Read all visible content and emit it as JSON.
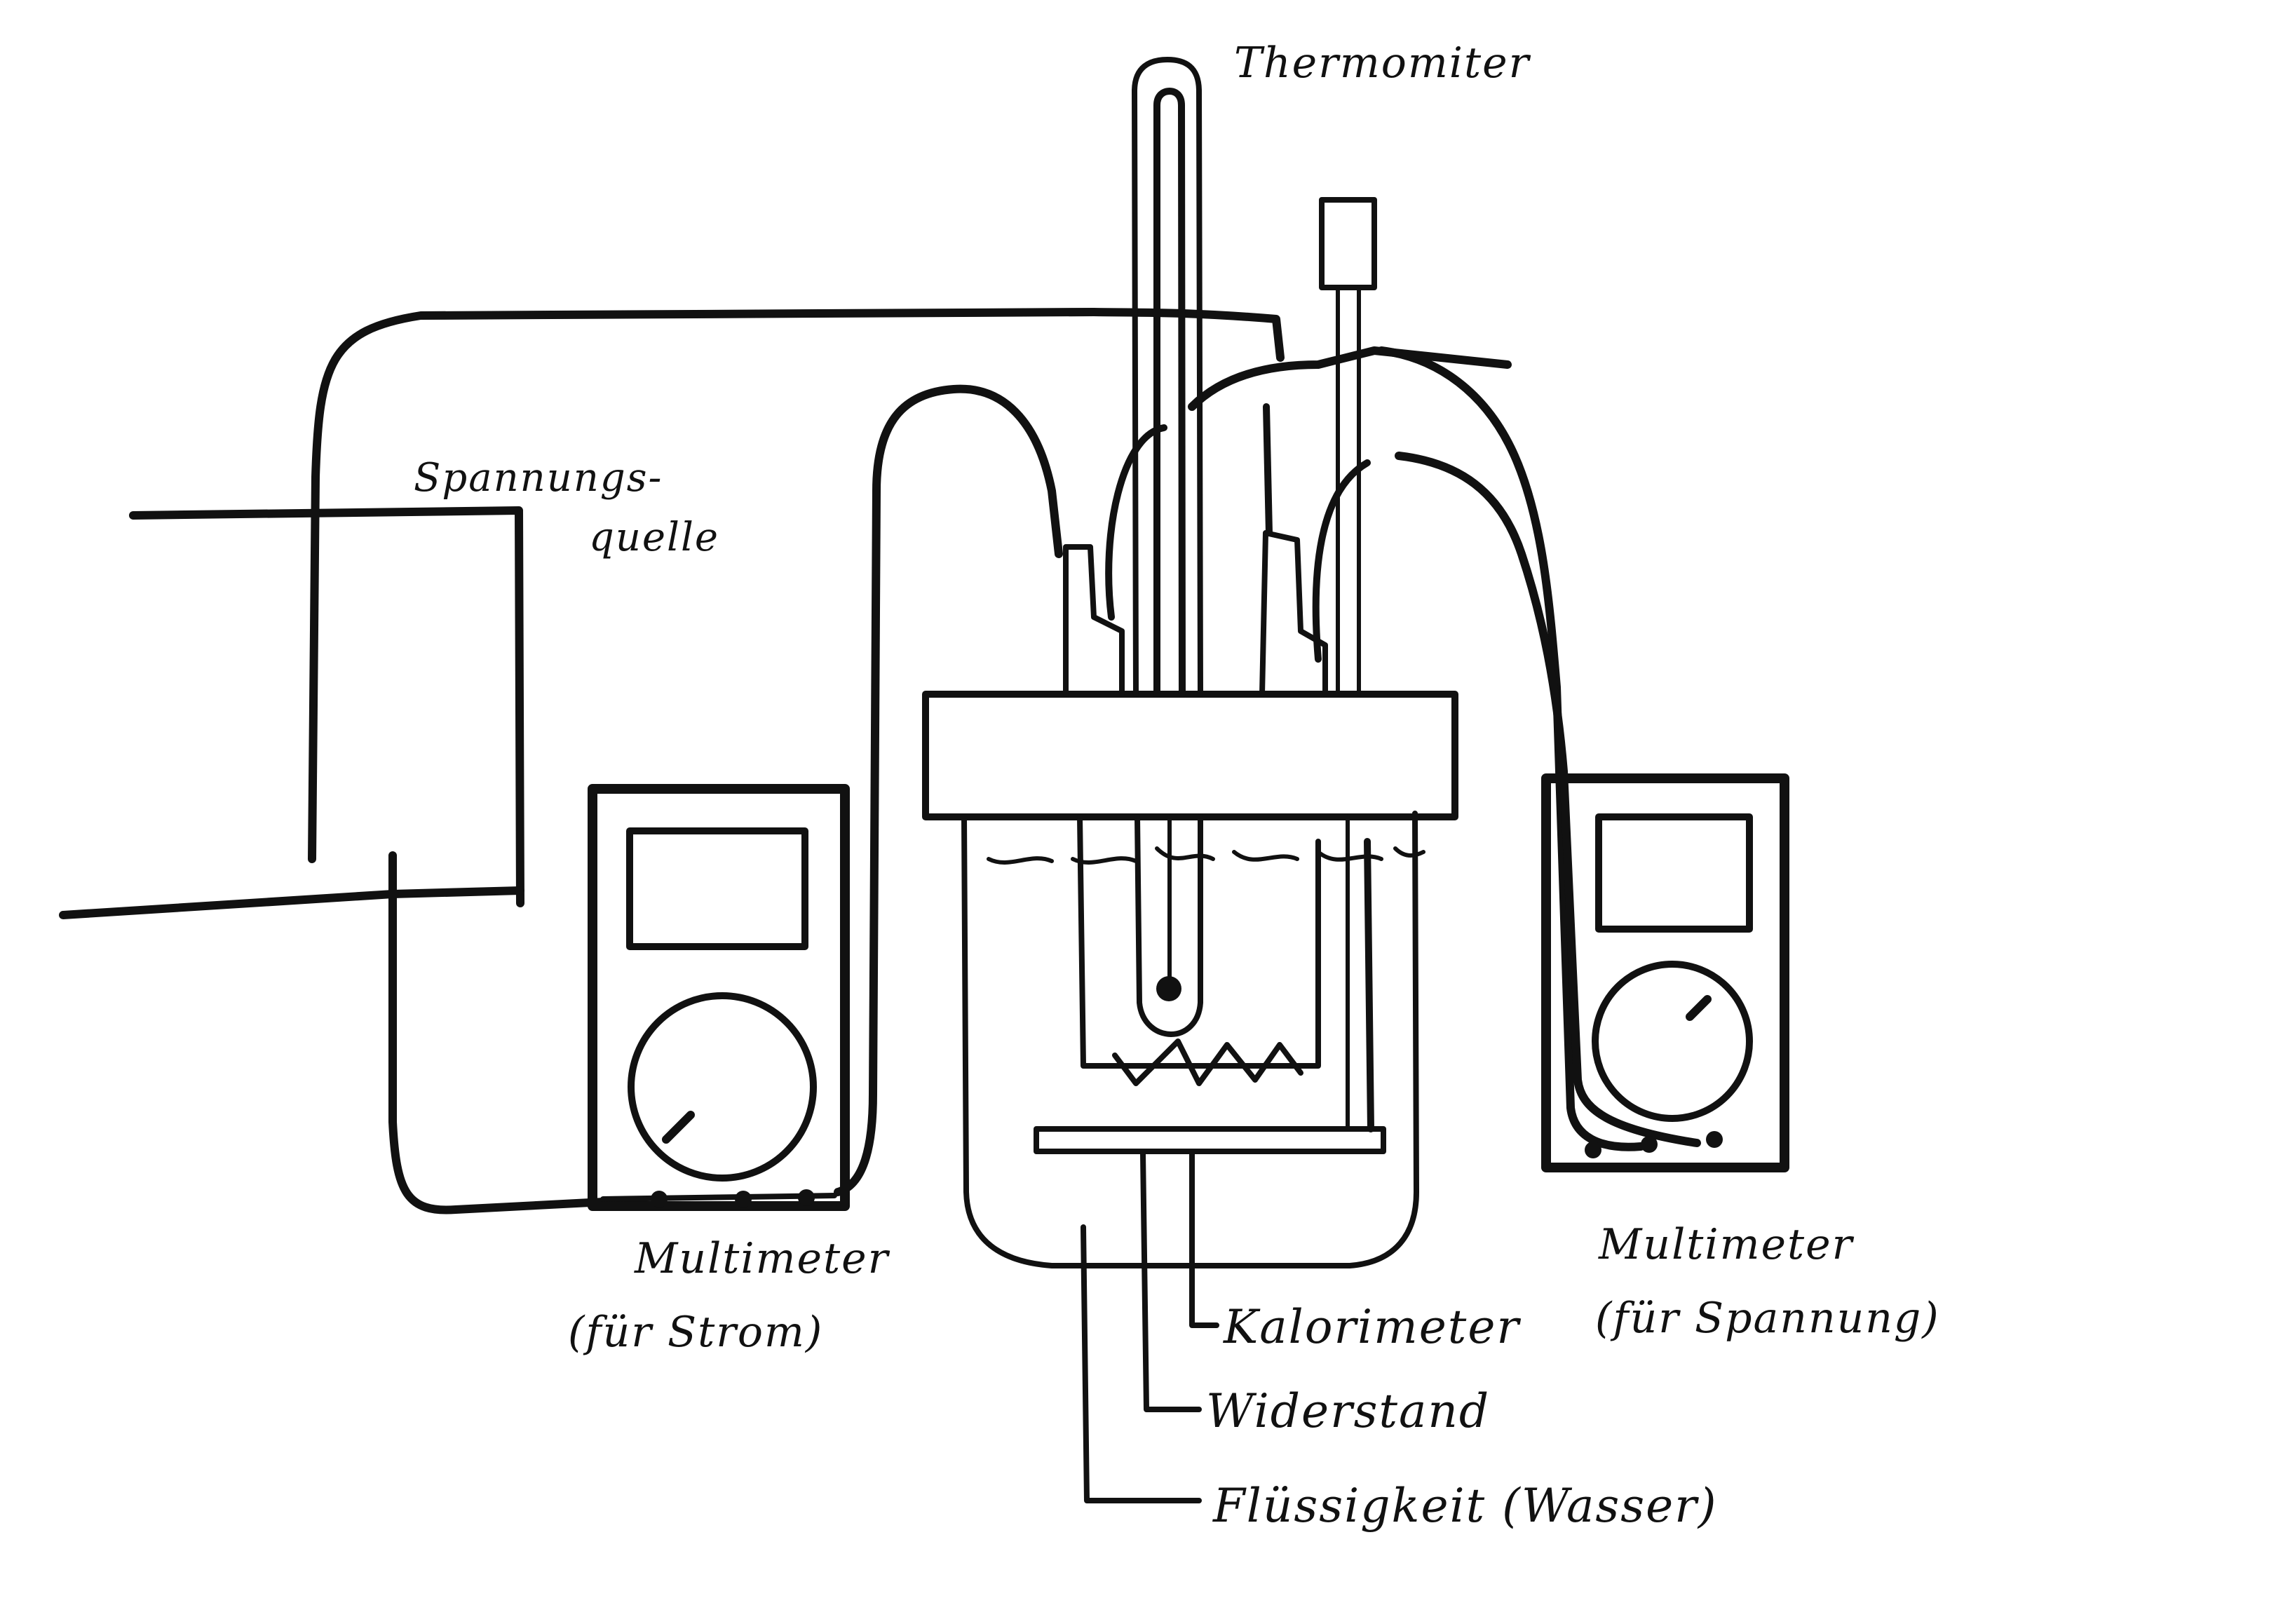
{
  "labels": {
    "thermometer": "Thermomiter",
    "voltage_source_line1": "Spannungs-",
    "voltage_source_line2": "quelle",
    "ammeter_line1": "Multimeter",
    "ammeter_line2": "(für Strom)",
    "voltmeter_line1": "Multimeter",
    "voltmeter_line2": "(für Spannung)",
    "calorimeter": "Kalorimeter",
    "resistor": "Widerstand",
    "liquid": "Flüssigkeit (Wasser)"
  },
  "colors": {
    "ink": "#111111",
    "paper": "#ffffff"
  }
}
